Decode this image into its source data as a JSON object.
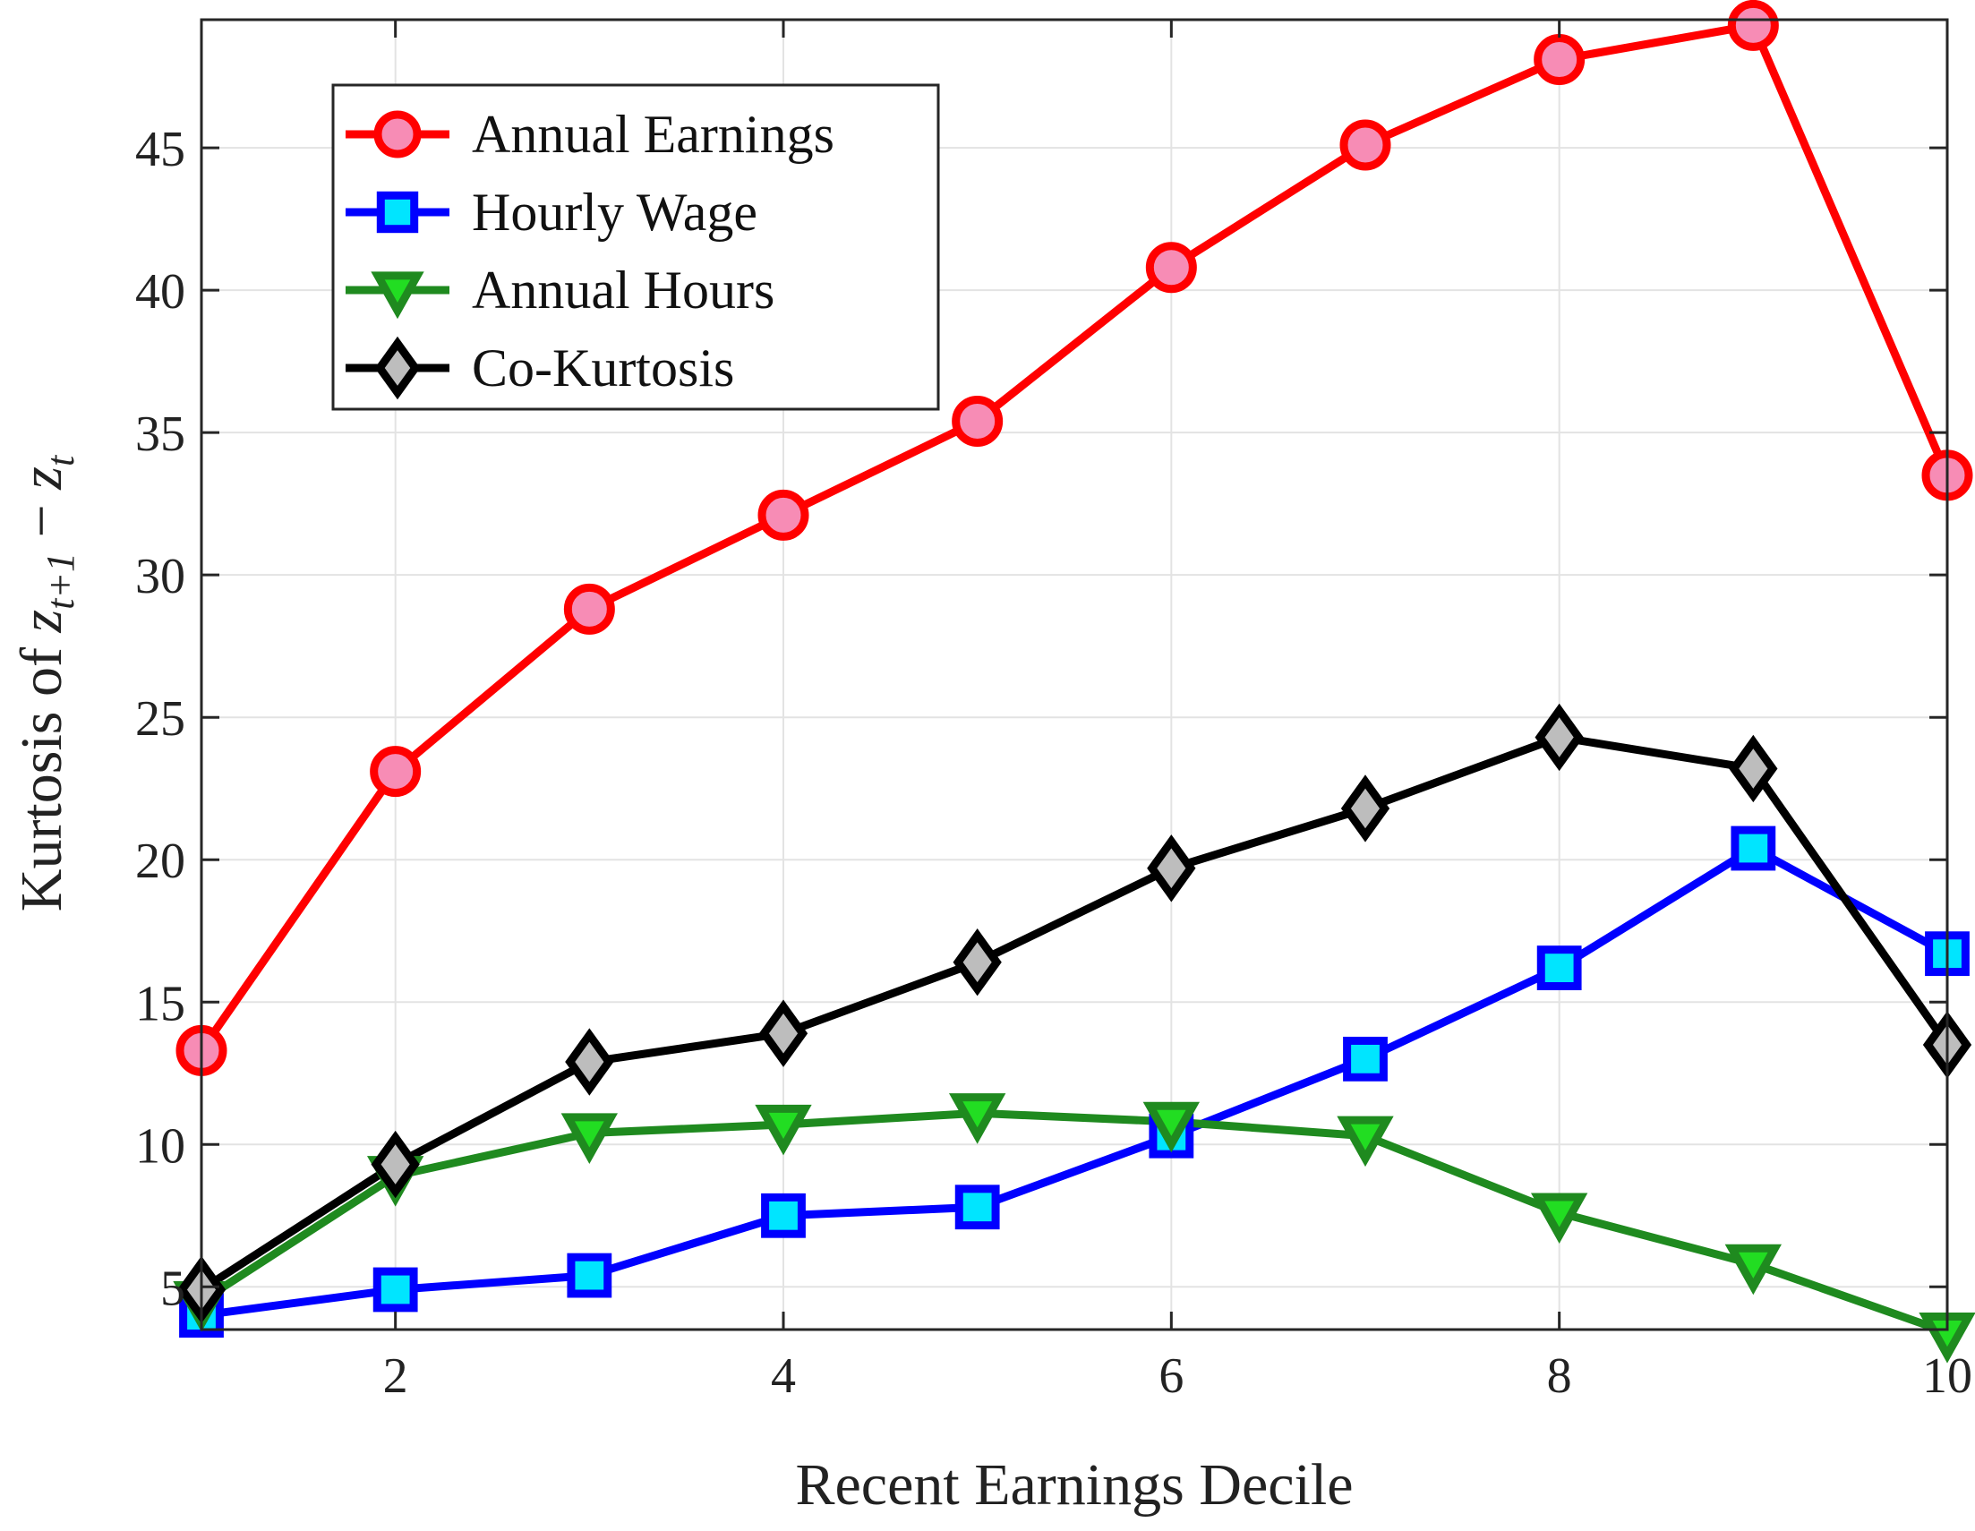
{
  "chart_data": {
    "type": "line",
    "xlabel": "Recent Earnings Decile",
    "ylabel": {
      "prefix": "Kurtosis of ",
      "math": [
        "z",
        "t+1",
        " − ",
        "z",
        "t"
      ]
    },
    "x": [
      1,
      2,
      3,
      4,
      5,
      6,
      7,
      8,
      9,
      10
    ],
    "xlim": [
      1,
      10
    ],
    "ylim": [
      3.5,
      49.5
    ],
    "xticks": [
      2,
      4,
      6,
      8,
      10
    ],
    "yticks": [
      5,
      10,
      15,
      20,
      25,
      30,
      35,
      40,
      45
    ],
    "grid": true,
    "legend_position": "top-left",
    "series": [
      {
        "name": "Annual Earnings",
        "color": "#ff0000",
        "marker": "circle",
        "marker_fill": "#f78cb5",
        "values": [
          13.3,
          23.1,
          28.8,
          32.1,
          35.4,
          40.8,
          45.1,
          48.1,
          49.3,
          33.5
        ]
      },
      {
        "name": "Hourly Wage",
        "color": "#0000ff",
        "marker": "square",
        "marker_fill": "#00e5ff",
        "values": [
          4.0,
          4.9,
          5.4,
          7.5,
          7.8,
          10.3,
          13.0,
          16.2,
          20.4,
          16.7
        ]
      },
      {
        "name": "Annual Hours",
        "color": "#1f8a1f",
        "marker": "triangle-down",
        "marker_fill": "#22dd22",
        "values": [
          4.5,
          8.9,
          10.4,
          10.7,
          11.1,
          10.8,
          10.3,
          7.6,
          5.8,
          3.4
        ]
      },
      {
        "name": "Co-Kurtosis",
        "color": "#000000",
        "marker": "diamond",
        "marker_fill": "#bdbdbd",
        "values": [
          4.9,
          9.3,
          12.9,
          13.9,
          16.4,
          19.7,
          21.8,
          24.3,
          23.2,
          13.5
        ]
      }
    ]
  }
}
